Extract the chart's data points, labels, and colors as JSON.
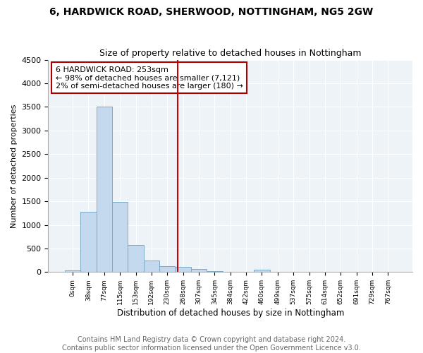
{
  "title1": "6, HARDWICK ROAD, SHERWOOD, NOTTINGHAM, NG5 2GW",
  "title2": "Size of property relative to detached houses in Nottingham",
  "xlabel": "Distribution of detached houses by size in Nottingham",
  "ylabel": "Number of detached properties",
  "footer1": "Contains HM Land Registry data © Crown copyright and database right 2024.",
  "footer2": "Contains public sector information licensed under the Open Government Licence v3.0.",
  "annotation_line1": "6 HARDWICK ROAD: 253sqm",
  "annotation_line2": "← 98% of detached houses are smaller (7,121)",
  "annotation_line3": "2% of semi-detached houses are larger (180) →",
  "bar_categories": [
    "0sqm",
    "38sqm",
    "77sqm",
    "115sqm",
    "153sqm",
    "192sqm",
    "230sqm",
    "268sqm",
    "307sqm",
    "345sqm",
    "384sqm",
    "422sqm",
    "460sqm",
    "499sqm",
    "537sqm",
    "575sqm",
    "614sqm",
    "652sqm",
    "691sqm",
    "729sqm",
    "767sqm"
  ],
  "bar_values": [
    30,
    1280,
    3500,
    1480,
    580,
    250,
    130,
    110,
    60,
    20,
    5,
    0,
    50,
    0,
    0,
    0,
    0,
    0,
    0,
    0,
    0
  ],
  "bar_color": "#c5d9ee",
  "bar_edge_color": "#7aaac8",
  "vline_color": "#cc0000",
  "annotation_box_color": "#aa0000",
  "ylim": [
    0,
    4500
  ],
  "yticks": [
    0,
    500,
    1000,
    1500,
    2000,
    2500,
    3000,
    3500,
    4000,
    4500
  ],
  "title1_fontsize": 10,
  "title2_fontsize": 9,
  "axis_label_fontsize": 8,
  "tick_fontsize": 8,
  "footer_fontsize": 7,
  "annotation_fontsize": 8
}
